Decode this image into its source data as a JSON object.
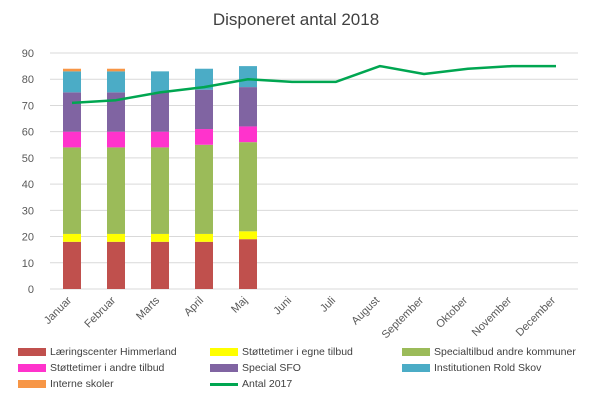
{
  "chart_data": {
    "type": "bar",
    "title": "Disponeret antal 2018",
    "categories": [
      "Januar",
      "Februar",
      "Marts",
      "April",
      "Maj",
      "Juni",
      "Juli",
      "August",
      "September",
      "Oktober",
      "November",
      "December"
    ],
    "ylim": [
      0,
      90
    ],
    "yticks": [
      0,
      10,
      20,
      30,
      40,
      50,
      60,
      70,
      80,
      90
    ],
    "grid": true,
    "legend_position": "bottom",
    "stacked": true,
    "series": [
      {
        "name": "Læringscenter Himmerland",
        "color": "#c0504d",
        "values": [
          18,
          18,
          18,
          18,
          19,
          null,
          null,
          null,
          null,
          null,
          null,
          null
        ]
      },
      {
        "name": "Støttetimer i egne tilbud",
        "color": "#ffff00",
        "values": [
          3,
          3,
          3,
          3,
          3,
          null,
          null,
          null,
          null,
          null,
          null,
          null
        ]
      },
      {
        "name": "Specialtilbud andre kommuner",
        "color": "#9bbb59",
        "values": [
          33,
          33,
          33,
          34,
          34,
          null,
          null,
          null,
          null,
          null,
          null,
          null
        ]
      },
      {
        "name": "Støttetimer i andre tilbud",
        "color": "#ff33cc",
        "values": [
          6,
          6,
          6,
          6,
          6,
          null,
          null,
          null,
          null,
          null,
          null,
          null
        ]
      },
      {
        "name": "Special SFO",
        "color": "#8064a2",
        "values": [
          15,
          15,
          15,
          15,
          15,
          null,
          null,
          null,
          null,
          null,
          null,
          null
        ]
      },
      {
        "name": "Institutionen Rold Skov",
        "color": "#4bacc6",
        "values": [
          8,
          8,
          8,
          8,
          8,
          null,
          null,
          null,
          null,
          null,
          null,
          null
        ]
      },
      {
        "name": "Interne skoler",
        "color": "#f79646",
        "values": [
          1,
          1,
          0,
          0,
          0,
          null,
          null,
          null,
          null,
          null,
          null,
          null
        ]
      }
    ],
    "line_series": {
      "name": "Antal 2017",
      "color": "#00a651",
      "values": [
        71,
        72,
        75,
        77,
        80,
        79,
        79,
        85,
        82,
        84,
        85,
        85
      ]
    }
  }
}
